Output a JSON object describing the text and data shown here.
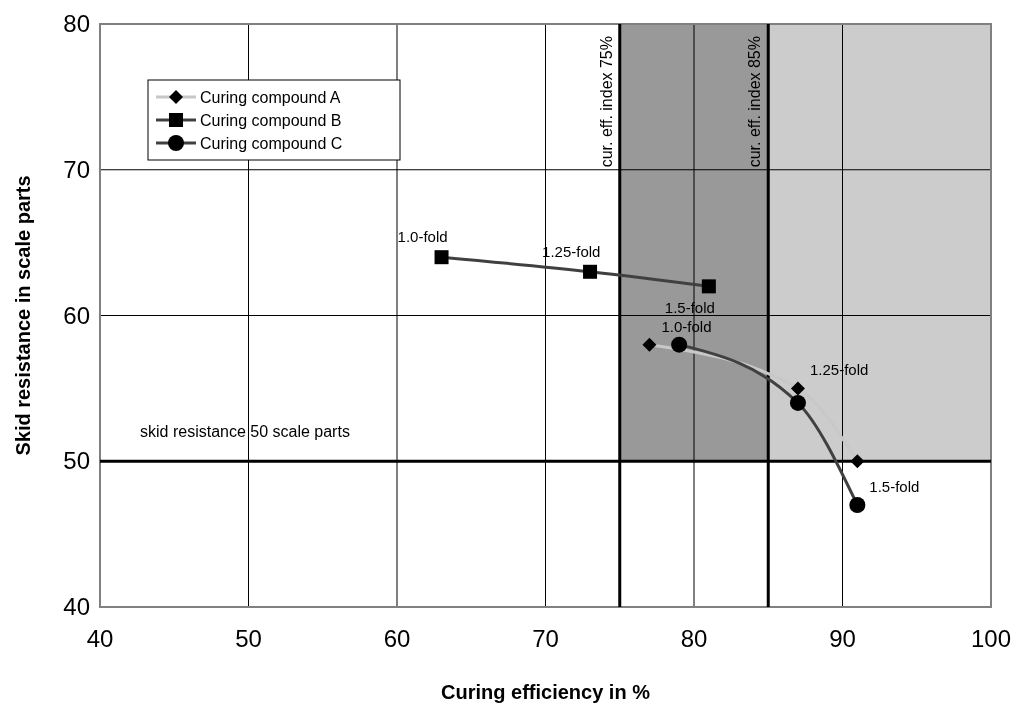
{
  "chart_data": {
    "type": "line",
    "xlabel": "Curing efficiency in %",
    "ylabel": "Skid resistance in scale parts",
    "xlim": [
      40,
      100
    ],
    "xticks": [
      40,
      50,
      60,
      70,
      80,
      90,
      100
    ],
    "ylim": [
      40,
      80
    ],
    "yticks": [
      40,
      50,
      60,
      70,
      80
    ],
    "grid": true,
    "legend": "top left",
    "series": [
      {
        "name": "Curing compound A",
        "color": "#c8c8c8",
        "marker": "diamond",
        "x": [
          77,
          87,
          91
        ],
        "values": [
          58,
          55,
          50
        ]
      },
      {
        "name": "Curing compound B",
        "color": "#404040",
        "marker": "square",
        "x": [
          63,
          73,
          81
        ],
        "values": [
          64,
          63,
          62
        ]
      },
      {
        "name": "Curing compound C",
        "color": "#404040",
        "marker": "circle",
        "x": [
          79,
          87,
          91
        ],
        "values": [
          58,
          54,
          47
        ]
      }
    ],
    "ref_lines": [
      {
        "axis": "x",
        "value": 75,
        "label": "cur. eff. index 75%"
      },
      {
        "axis": "x",
        "value": 85,
        "label": "cur. eff. index 85%"
      },
      {
        "axis": "y",
        "value": 50,
        "label": "skid resistance 50 scale parts"
      }
    ],
    "bands": [
      {
        "axis": "x",
        "from": 75,
        "to": 85,
        "color": "#999999"
      },
      {
        "axis": "x",
        "from": 85,
        "to": 100,
        "color": "#cccccc"
      }
    ],
    "annotations": [
      {
        "text": "1.0-fold",
        "x": 63,
        "y": 64
      },
      {
        "text": "1.25-fold",
        "x": 73,
        "y": 63
      },
      {
        "text": "1.5-fold",
        "x": 81,
        "y": 62
      },
      {
        "text": "1.0-fold",
        "x": 77,
        "y": 58
      },
      {
        "text": "1.25-fold",
        "x": 87,
        "y": 55
      },
      {
        "text": "1.5-fold",
        "x": 91,
        "y": 47
      }
    ]
  }
}
